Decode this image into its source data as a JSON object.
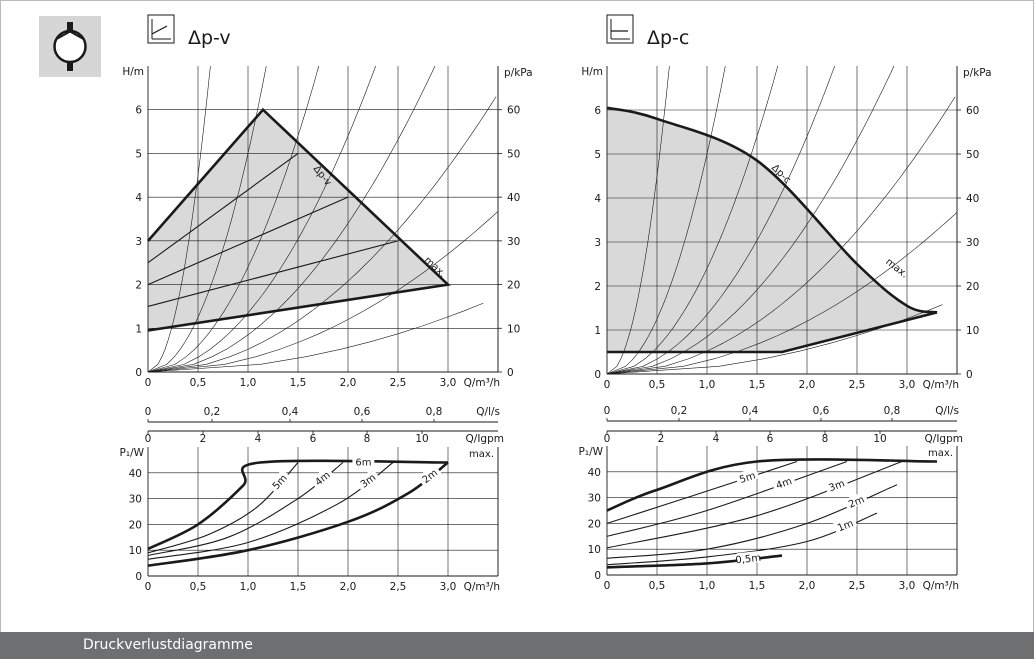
{
  "footer": {
    "title": "Druckverlustdiagramme"
  },
  "icons": {
    "pump": "pump-symbol-icon",
    "dpv": "dp-v-mode-icon",
    "dpc": "dp-c-mode-icon"
  },
  "colors": {
    "shade": "#d9d9d9",
    "footer_bg": "#6d6f71",
    "icon_bg": "#d6d6d6",
    "line": "#1a1a1a"
  },
  "chart_data": [
    {
      "type": "line",
      "title": "Δp-v",
      "xlabel": "Q/m³/h",
      "ylabel": "H/m",
      "y2label": "p/kPa",
      "xlim": [
        0,
        3.5
      ],
      "ylim": [
        0,
        7
      ],
      "y2lim": [
        0,
        70
      ],
      "xticks": [
        "0",
        "0,5",
        "1,0",
        "1,5",
        "2,0",
        "2,5",
        "3,0"
      ],
      "yticks": [
        "0",
        "1",
        "2",
        "3",
        "4",
        "5",
        "6"
      ],
      "y2ticks": [
        "0",
        "10",
        "20",
        "30",
        "40",
        "50",
        "60"
      ],
      "grid": true,
      "secondary_axes": [
        {
          "label": "Q/l/s",
          "ticks": [
            "0",
            "0,2",
            "0,4",
            "0,6",
            "0,8"
          ]
        },
        {
          "label": "Q/Igpm",
          "ticks": [
            "0",
            "2",
            "4",
            "6",
            "8",
            "10"
          ]
        }
      ],
      "annotations": [
        "Δp-v",
        "max."
      ],
      "series": [
        {
          "points": [
            [
              0,
              3.0
            ],
            [
              1.15,
              6.0
            ],
            [
              3.0,
              2.0
            ],
            [
              0,
              0.95
            ]
          ]
        },
        {
          "points": [
            [
              0,
              2.5
            ],
            [
              1.5,
              5.0
            ]
          ]
        },
        {
          "points": [
            [
              0,
              2.0
            ],
            [
              2.0,
              4.0
            ]
          ]
        },
        {
          "points": [
            [
              0,
              1.5
            ],
            [
              2.5,
              3.0
            ]
          ]
        }
      ]
    },
    {
      "type": "line",
      "xlabel": "Q/m³/h",
      "ylabel": "P₁/W",
      "xlim": [
        0,
        3.5
      ],
      "ylim": [
        0,
        50
      ],
      "xticks": [
        "0",
        "0,5",
        "1,0",
        "1,5",
        "2,0",
        "2,5",
        "3,0"
      ],
      "yticks": [
        "0",
        "10",
        "20",
        "30",
        "40"
      ],
      "grid": true,
      "annotations": [
        "max."
      ],
      "series": [
        {
          "name": "6m",
          "points": [
            [
              0,
              10.5
            ],
            [
              0.5,
              20
            ],
            [
              0.95,
              35
            ],
            [
              1.12,
              44
            ],
            [
              3.0,
              44
            ]
          ]
        },
        {
          "name": "5m",
          "points": [
            [
              0,
              9
            ],
            [
              0.6,
              16
            ],
            [
              1.1,
              27
            ],
            [
              1.5,
              44
            ]
          ]
        },
        {
          "name": "4m",
          "points": [
            [
              0,
              8
            ],
            [
              0.8,
              15
            ],
            [
              1.5,
              30
            ],
            [
              1.95,
              44
            ]
          ]
        },
        {
          "name": "3m",
          "points": [
            [
              0,
              6.5
            ],
            [
              1.0,
              13
            ],
            [
              1.9,
              28
            ],
            [
              2.45,
              44
            ]
          ]
        },
        {
          "name": "2m",
          "points": [
            [
              0,
              4
            ],
            [
              1.0,
              10
            ],
            [
              2.0,
              21
            ],
            [
              2.6,
              32
            ],
            [
              3.0,
              44
            ]
          ]
        }
      ]
    },
    {
      "type": "line",
      "title": "Δp-c",
      "xlabel": "Q/m³/h",
      "ylabel": "H/m",
      "y2label": "p/kPa",
      "xlim": [
        0,
        3.5
      ],
      "ylim": [
        0,
        7
      ],
      "y2lim": [
        0,
        70
      ],
      "xticks": [
        "0",
        "0,5",
        "1,0",
        "1,5",
        "2,0",
        "2,5",
        "3,0"
      ],
      "yticks": [
        "0",
        "1",
        "2",
        "3",
        "4",
        "5",
        "6"
      ],
      "y2ticks": [
        "0",
        "10",
        "20",
        "30",
        "40",
        "50",
        "60"
      ],
      "grid": true,
      "secondary_axes": [
        {
          "label": "Q/l/s",
          "ticks": [
            "0",
            "0,2",
            "0,4",
            "0,6",
            "0,8"
          ]
        },
        {
          "label": "Q/Igpm",
          "ticks": [
            "0",
            "2",
            "4",
            "6",
            "8",
            "10"
          ]
        }
      ],
      "annotations": [
        "Δp-c",
        "max."
      ],
      "series": [
        {
          "points": [
            [
              0,
              6.05
            ],
            [
              0.5,
              5.8
            ],
            [
              1.5,
              4.85
            ],
            [
              2.5,
              2.5
            ],
            [
              3.0,
              1.55
            ],
            [
              3.3,
              1.4
            ]
          ]
        },
        {
          "points": [
            [
              0,
              0.5
            ],
            [
              1.75,
              0.5
            ],
            [
              3.3,
              1.4
            ]
          ]
        }
      ]
    },
    {
      "type": "line",
      "xlabel": "Q/m³/h",
      "ylabel": "P₁/W",
      "xlim": [
        0,
        3.5
      ],
      "ylim": [
        0,
        50
      ],
      "xticks": [
        "0",
        "0,5",
        "1,0",
        "1,5",
        "2,0",
        "2,5",
        "3,0"
      ],
      "yticks": [
        "0",
        "10",
        "20",
        "30",
        "40"
      ],
      "grid": true,
      "annotations": [
        "max."
      ],
      "series": [
        {
          "name": "max",
          "points": [
            [
              0,
              25
            ],
            [
              0.5,
              33
            ],
            [
              1.5,
              44
            ],
            [
              3.3,
              44
            ]
          ]
        },
        {
          "name": "5m",
          "points": [
            [
              0,
              20
            ],
            [
              0.8,
              30
            ],
            [
              1.9,
              44
            ]
          ]
        },
        {
          "name": "4m",
          "points": [
            [
              0,
              15
            ],
            [
              1.0,
              25
            ],
            [
              2.4,
              44
            ]
          ]
        },
        {
          "name": "3m",
          "points": [
            [
              0,
              10.5
            ],
            [
              1.5,
              23
            ],
            [
              2.95,
              44
            ]
          ]
        },
        {
          "name": "2m",
          "points": [
            [
              0,
              6.5
            ],
            [
              1.0,
              10
            ],
            [
              2.0,
              20
            ],
            [
              2.9,
              35
            ]
          ]
        },
        {
          "name": "1m",
          "points": [
            [
              0,
              4
            ],
            [
              1.0,
              7
            ],
            [
              2.0,
              13
            ],
            [
              2.7,
              24
            ]
          ]
        },
        {
          "name": "0,5m",
          "points": [
            [
              0,
              3
            ],
            [
              1.0,
              4.5
            ],
            [
              1.75,
              7.5
            ]
          ]
        }
      ]
    }
  ]
}
